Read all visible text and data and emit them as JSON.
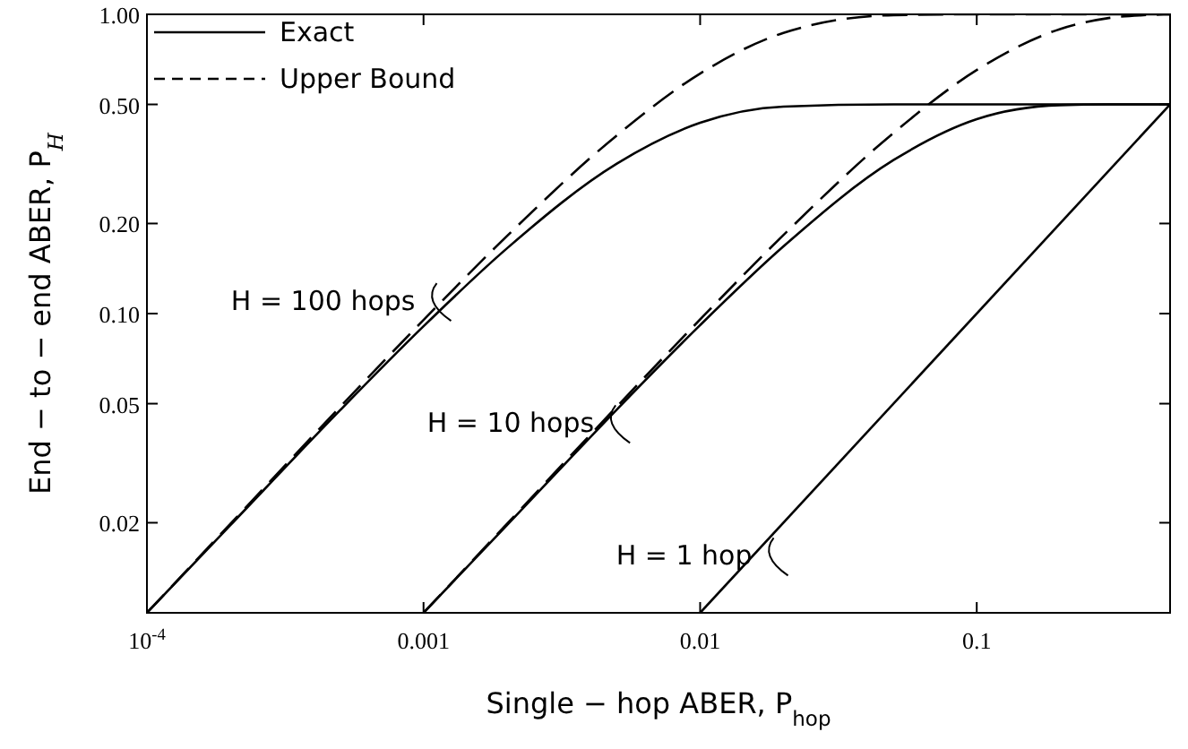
{
  "chart_data": {
    "type": "line",
    "xlabel": "Single − hop ABER,  P$_{hop}$",
    "ylabel": "End − to − end ABER,  P$_{H}$",
    "log": "xy",
    "xlim": [
      0.0001,
      0.5
    ],
    "ylim": [
      0.01,
      1
    ],
    "xticks": [
      {
        "value": 0.0001,
        "label": "10$^{-4}$"
      },
      0.001,
      0.01,
      0.1
    ],
    "yticks": [
      0.02,
      0.05,
      {
        "value": 0.1,
        "label": "0.10"
      },
      {
        "value": 0.2,
        "label": "0.20"
      },
      {
        "value": 0.5,
        "label": "0.50"
      },
      {
        "value": 1,
        "label": "1.00"
      }
    ],
    "legend": "top left",
    "grid": false,
    "series": [
      {
        "name": "Exact",
        "color": "#000000",
        "line_style": "solid",
        "x": [
          0.0001,
          0.0002,
          0.0005,
          0.001,
          0.002,
          0.005,
          0.01,
          0.02,
          0.05,
          0.1,
          0.5
        ],
        "values": [
          0.01,
          0.0196,
          0.0476,
          0.0907,
          0.165,
          0.317,
          0.434,
          0.4916,
          0.5,
          0.5,
          0.5
        ]
      },
      {
        "name": "Upper Bound",
        "color": "#000000",
        "line_style": "dashed",
        "x": [
          0.0001,
          0.0002,
          0.0005,
          0.001,
          0.002,
          0.005,
          0.01,
          0.02,
          0.05,
          0.1,
          0.5
        ],
        "values": [
          0.01,
          0.0198,
          0.0488,
          0.0952,
          0.1814,
          0.394,
          0.634,
          0.867,
          0.994,
          1,
          1
        ]
      },
      {
        "color": "#000000",
        "line_style": "solid",
        "x": [
          0.001,
          0.002,
          0.005,
          0.01,
          0.02,
          0.05,
          0.1,
          0.2,
          0.3,
          0.5
        ],
        "values": [
          0.01,
          0.0196,
          0.0478,
          0.0915,
          0.1676,
          0.3257,
          0.4463,
          0.497,
          0.4999,
          0.5
        ]
      },
      {
        "color": "#000000",
        "line_style": "dashed",
        "x": [
          0.001,
          0.002,
          0.005,
          0.01,
          0.02,
          0.05,
          0.1,
          0.2,
          0.3,
          0.4,
          0.5
        ],
        "values": [
          0.01,
          0.0198,
          0.0489,
          0.0956,
          0.1829,
          0.4013,
          0.6513,
          0.8926,
          0.9718,
          0.994,
          0.999
        ]
      },
      {
        "color": "#000000",
        "line_style": "solid",
        "x": [
          0.01,
          0.5
        ],
        "values": [
          0.01,
          0.5
        ]
      }
    ],
    "annotations": [
      {
        "text": "H = 100 hops",
        "x": 0.00115,
        "y": 0.11
      },
      {
        "text": "H = 10 hops",
        "x": 0.0051,
        "y": 0.043
      },
      {
        "text": "H = 1 hop",
        "x": 0.019,
        "y": 0.0155
      }
    ]
  }
}
